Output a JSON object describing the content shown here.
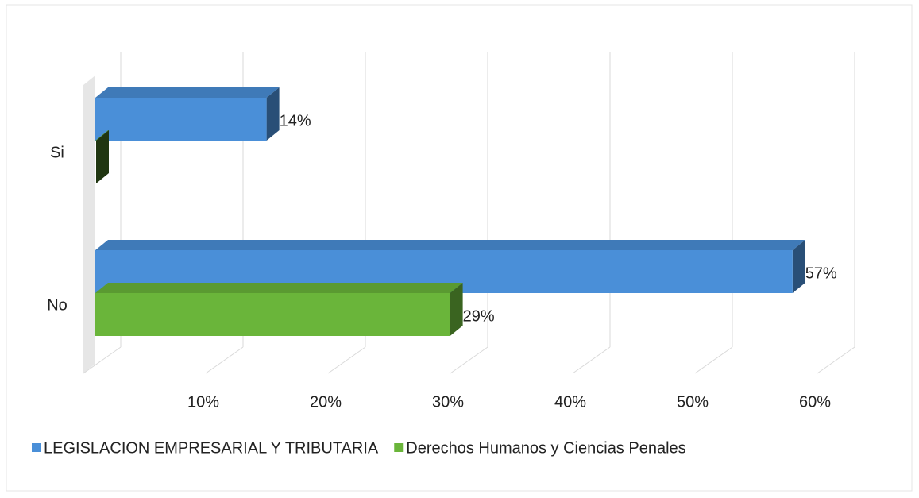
{
  "chart_data": {
    "type": "bar3d_horizontal",
    "categories": [
      "Si",
      "No"
    ],
    "series": [
      {
        "name": "LEGISLACION EMPRESARIAL Y TRIBUTARIA",
        "color": "#4a8fd8",
        "values": [
          14,
          57
        ],
        "value_labels": [
          "14%",
          "57%"
        ]
      },
      {
        "name": "Derechos Humanos y Ciencias Penales",
        "color": "#6ab53a",
        "values": [
          0,
          29
        ],
        "value_labels": [
          null,
          "29%"
        ]
      }
    ],
    "xlim": [
      0,
      60
    ],
    "xticks": [
      {
        "value": 10,
        "label": "10%"
      },
      {
        "value": 20,
        "label": "20%"
      },
      {
        "value": 30,
        "label": "30%"
      },
      {
        "value": 40,
        "label": "40%"
      },
      {
        "value": 50,
        "label": "50%"
      },
      {
        "value": 60,
        "label": "60%"
      }
    ],
    "grid": true,
    "legend": "bottom"
  }
}
